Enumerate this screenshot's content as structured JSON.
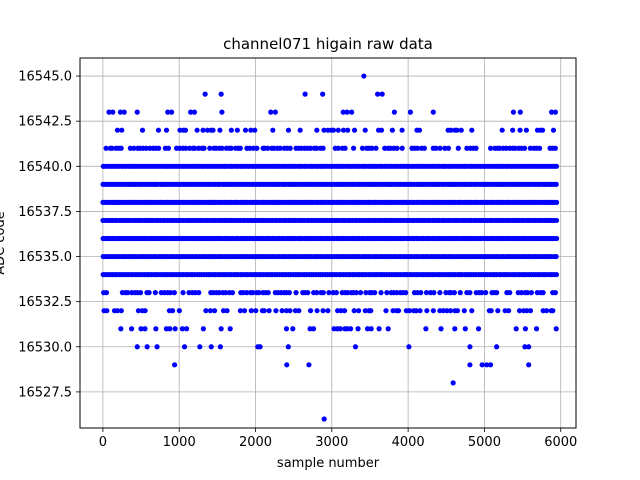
{
  "chart_data": {
    "type": "scatter",
    "title": "channel071 higain raw data",
    "xlabel": "sample number",
    "ylabel": "ADC code",
    "xlim": [
      -300,
      6200
    ],
    "ylim": [
      16525.5,
      16546.0
    ],
    "x_ticks": [
      0,
      1000,
      2000,
      3000,
      4000,
      5000,
      6000
    ],
    "x_tick_labels": [
      "0",
      "1000",
      "2000",
      "3000",
      "4000",
      "5000",
      "6000"
    ],
    "y_ticks": [
      16527.5,
      16530.0,
      16532.5,
      16535.0,
      16537.5,
      16540.0,
      16542.5,
      16545.0
    ],
    "y_tick_labels": [
      "16527.5",
      "16530.0",
      "16532.5",
      "16535.0",
      "16537.5",
      "16540.0",
      "16542.5",
      "16545.0"
    ],
    "grid": true,
    "marker_color": "#0000ff",
    "dense_levels": [
      16534,
      16535,
      16536,
      16537,
      16538,
      16539,
      16540
    ],
    "medium_levels": [
      16533,
      16541
    ],
    "sparse_levels": [
      16531,
      16532,
      16542
    ],
    "outliers": [
      {
        "x": 3420,
        "y": 16545
      },
      {
        "x": 1340,
        "y": 16544
      },
      {
        "x": 1550,
        "y": 16544
      },
      {
        "x": 2650,
        "y": 16544
      },
      {
        "x": 2880,
        "y": 16544
      },
      {
        "x": 3600,
        "y": 16544
      },
      {
        "x": 3660,
        "y": 16544
      },
      {
        "x": 80,
        "y": 16543
      },
      {
        "x": 130,
        "y": 16543
      },
      {
        "x": 230,
        "y": 16543
      },
      {
        "x": 280,
        "y": 16543
      },
      {
        "x": 450,
        "y": 16543
      },
      {
        "x": 850,
        "y": 16543
      },
      {
        "x": 900,
        "y": 16543
      },
      {
        "x": 1150,
        "y": 16543
      },
      {
        "x": 1200,
        "y": 16543
      },
      {
        "x": 1560,
        "y": 16543
      },
      {
        "x": 2200,
        "y": 16543
      },
      {
        "x": 2260,
        "y": 16543
      },
      {
        "x": 3150,
        "y": 16543
      },
      {
        "x": 3200,
        "y": 16543
      },
      {
        "x": 3260,
        "y": 16543
      },
      {
        "x": 3820,
        "y": 16543
      },
      {
        "x": 4030,
        "y": 16543
      },
      {
        "x": 4330,
        "y": 16543
      },
      {
        "x": 5380,
        "y": 16543
      },
      {
        "x": 5470,
        "y": 16543
      },
      {
        "x": 5880,
        "y": 16543
      },
      {
        "x": 5930,
        "y": 16543
      },
      {
        "x": 450,
        "y": 16530
      },
      {
        "x": 580,
        "y": 16530
      },
      {
        "x": 710,
        "y": 16530
      },
      {
        "x": 1070,
        "y": 16530
      },
      {
        "x": 1270,
        "y": 16530
      },
      {
        "x": 1420,
        "y": 16530
      },
      {
        "x": 1540,
        "y": 16530
      },
      {
        "x": 2030,
        "y": 16530
      },
      {
        "x": 2060,
        "y": 16530
      },
      {
        "x": 2430,
        "y": 16530
      },
      {
        "x": 3310,
        "y": 16530
      },
      {
        "x": 4010,
        "y": 16530
      },
      {
        "x": 4810,
        "y": 16530
      },
      {
        "x": 5160,
        "y": 16530
      },
      {
        "x": 5530,
        "y": 16530
      },
      {
        "x": 5580,
        "y": 16530
      },
      {
        "x": 940,
        "y": 16529
      },
      {
        "x": 2410,
        "y": 16529
      },
      {
        "x": 2700,
        "y": 16529
      },
      {
        "x": 4810,
        "y": 16529
      },
      {
        "x": 4970,
        "y": 16529
      },
      {
        "x": 5030,
        "y": 16529
      },
      {
        "x": 5080,
        "y": 16529
      },
      {
        "x": 5580,
        "y": 16529
      },
      {
        "x": 4590,
        "y": 16528
      },
      {
        "x": 2900,
        "y": 16526
      }
    ]
  }
}
